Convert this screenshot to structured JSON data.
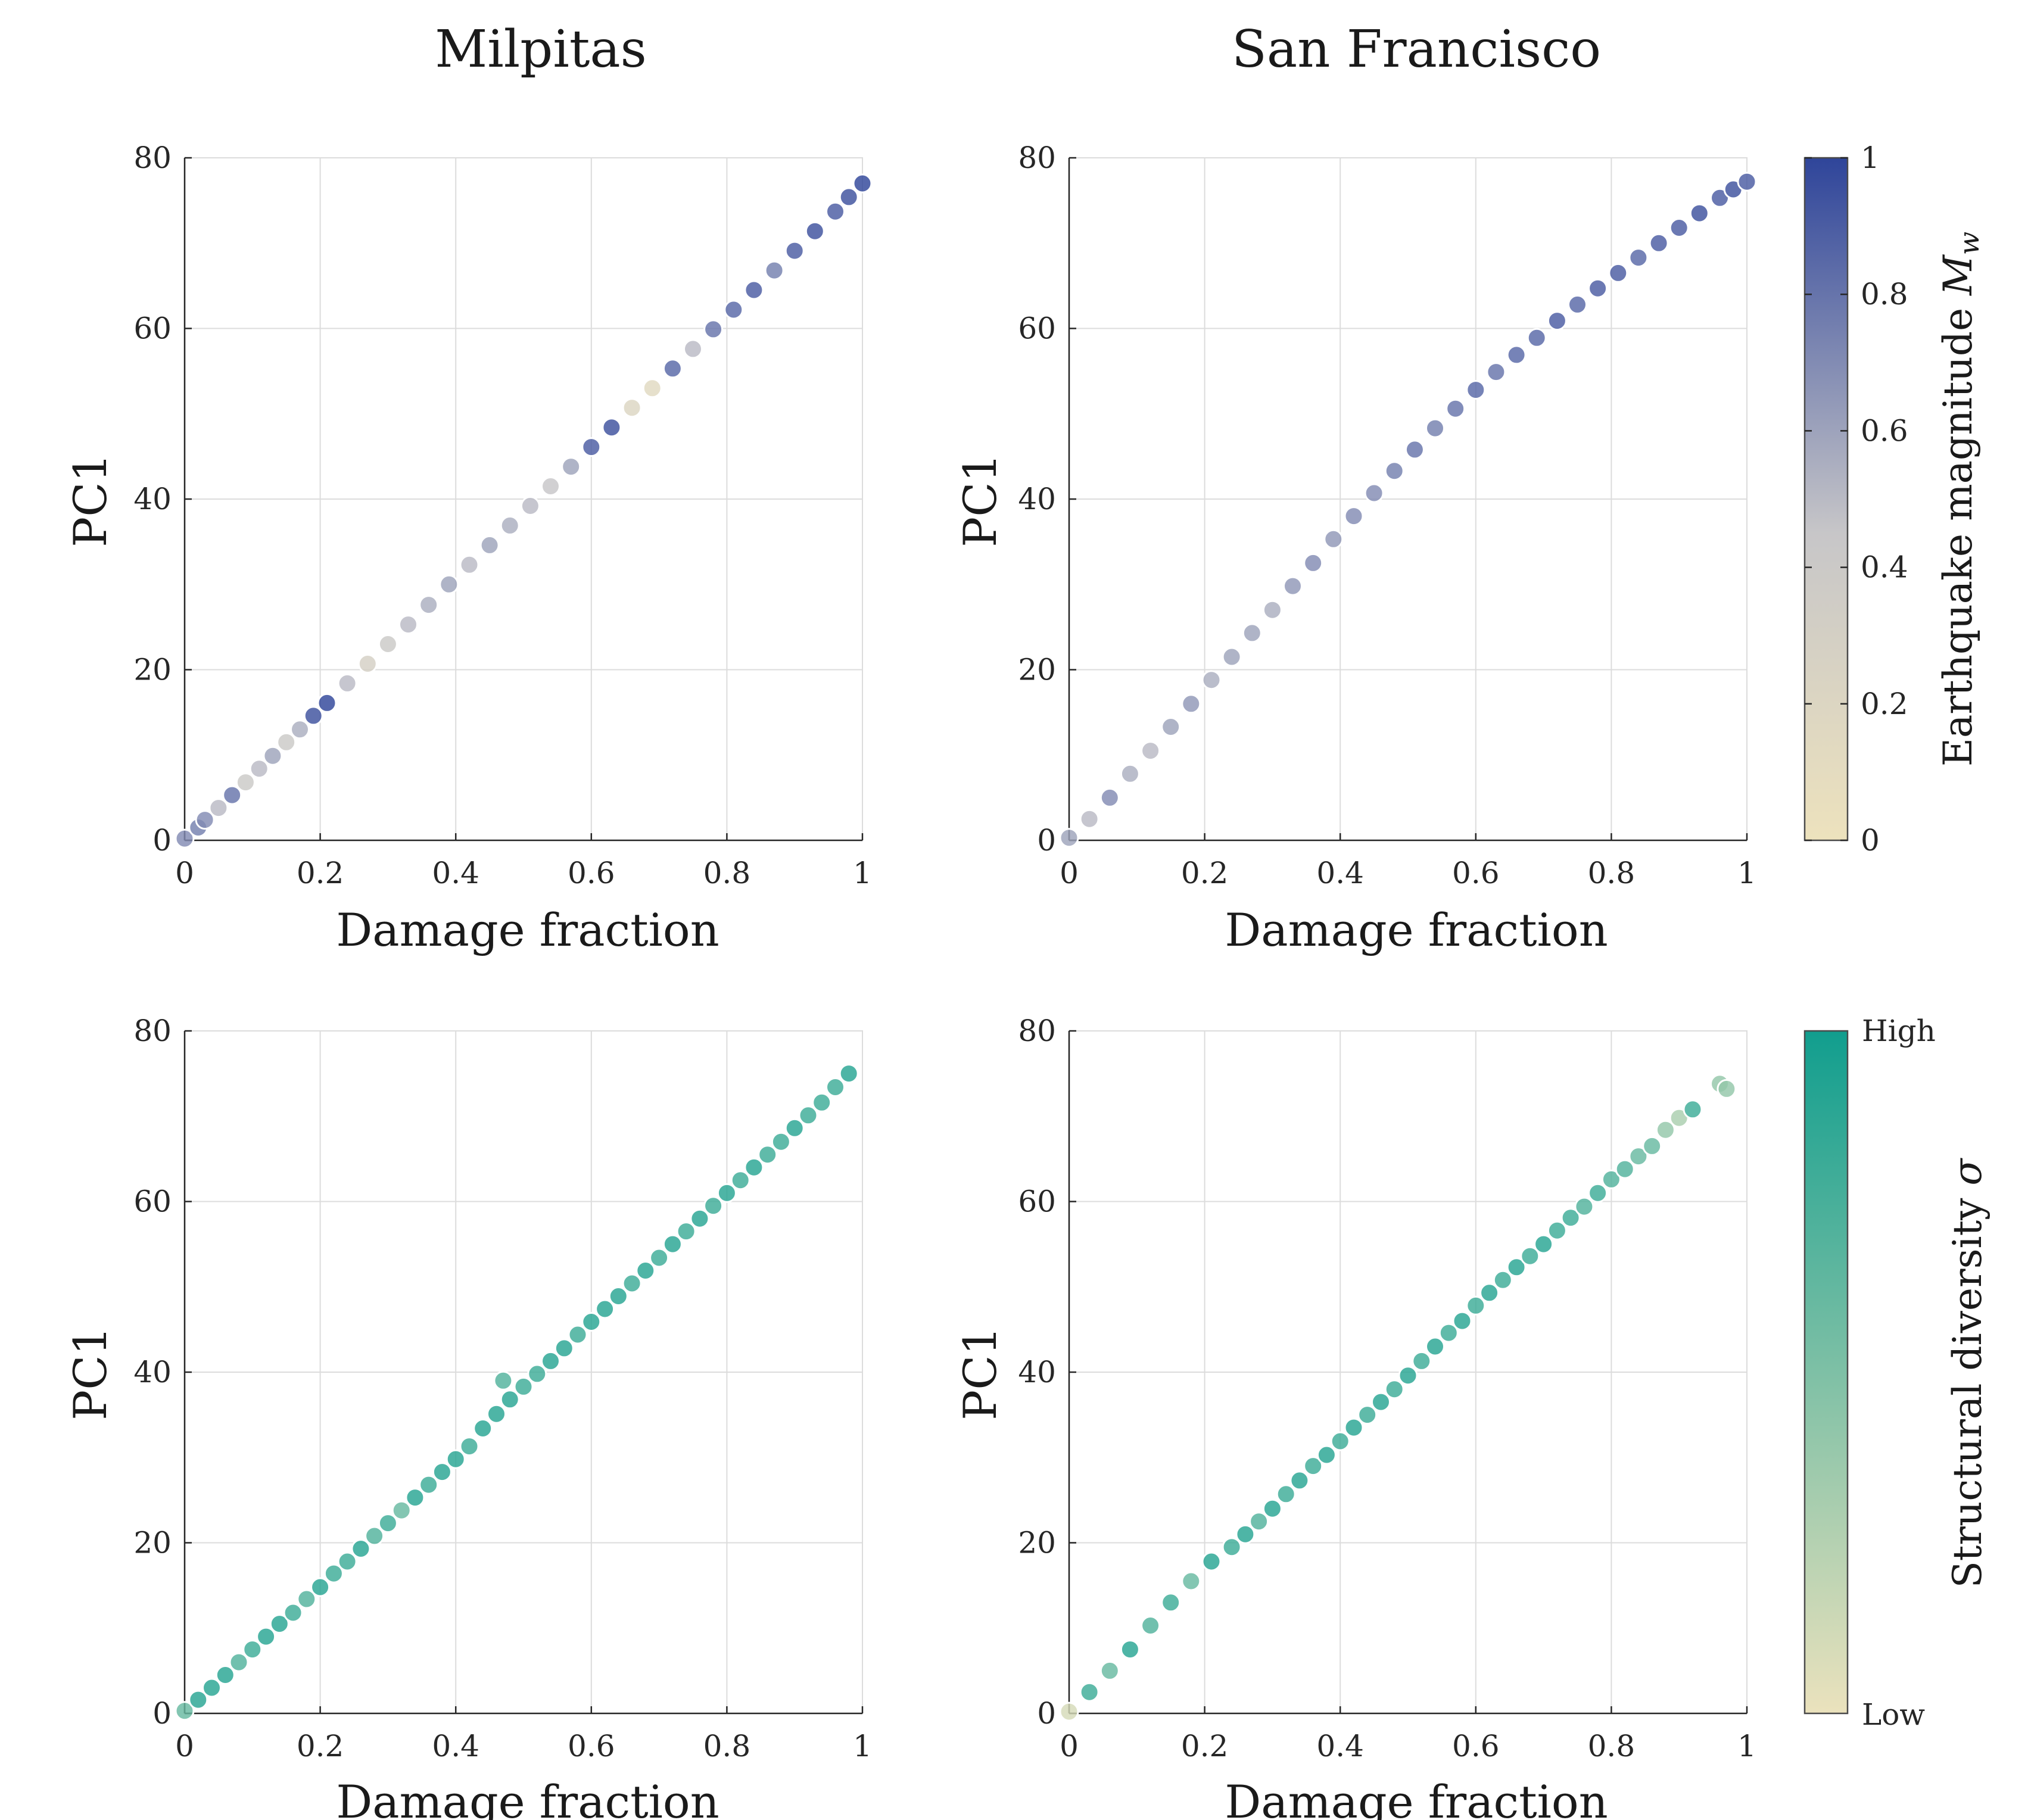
{
  "figure": {
    "column_titles": [
      "Milpitas",
      "San Francisco"
    ]
  },
  "colorbars": [
    {
      "label": "Earthquake magnitude M_w",
      "label_prefix": "Earthquake magnitude ",
      "label_symbol": "M",
      "label_subscript": "w",
      "ticks": [
        "0",
        "0.2",
        "0.4",
        "0.6",
        "0.8",
        "1"
      ],
      "color_low": "#ede2bd",
      "color_mid": "#c7c6c8",
      "color_high": "#2f459a"
    },
    {
      "label": "Structural diversity σ",
      "label_prefix": "Structural diversity ",
      "label_symbol": "σ",
      "ticks": [
        "Low",
        "High"
      ],
      "color_low": "#ebe2bd",
      "color_high": "#119e8e"
    }
  ],
  "chart_data": [
    {
      "type": "scatter",
      "panel": "top-left",
      "title": "Milpitas",
      "xlabel": "Damage fraction",
      "ylabel": "PC1",
      "xlim": [
        0,
        1
      ],
      "ylim": [
        0,
        80
      ],
      "xticks": [
        "0",
        "0.2",
        "0.4",
        "0.6",
        "0.8",
        "1"
      ],
      "yticks": [
        "0",
        "20",
        "40",
        "60",
        "80"
      ],
      "grid": true,
      "color_by": "Earthquake magnitude M_w",
      "x": [
        0.0,
        0.02,
        0.03,
        0.05,
        0.07,
        0.09,
        0.11,
        0.13,
        0.15,
        0.17,
        0.19,
        0.21,
        0.24,
        0.27,
        0.3,
        0.33,
        0.36,
        0.39,
        0.42,
        0.45,
        0.48,
        0.51,
        0.54,
        0.57,
        0.6,
        0.63,
        0.66,
        0.69,
        0.72,
        0.75,
        0.78,
        0.81,
        0.84,
        0.87,
        0.9,
        0.93,
        0.96,
        0.98,
        1.0
      ],
      "y": [
        0.2,
        1.5,
        2.4,
        3.8,
        5.3,
        6.8,
        8.4,
        9.9,
        11.5,
        13.0,
        14.6,
        16.1,
        18.4,
        20.7,
        23.0,
        25.3,
        27.6,
        30.0,
        32.3,
        34.6,
        36.9,
        39.2,
        41.5,
        43.8,
        46.1,
        48.4,
        50.7,
        53.0,
        55.3,
        57.6,
        59.9,
        62.2,
        64.5,
        66.8,
        69.1,
        71.4,
        73.7,
        75.4,
        77.0
      ],
      "magnitude": [
        0.7,
        0.75,
        0.7,
        0.5,
        0.8,
        0.4,
        0.5,
        0.6,
        0.4,
        0.55,
        0.95,
        1.0,
        0.5,
        0.3,
        0.4,
        0.5,
        0.55,
        0.6,
        0.5,
        0.6,
        0.55,
        0.5,
        0.45,
        0.6,
        0.9,
        0.95,
        0.2,
        0.15,
        0.85,
        0.5,
        0.8,
        0.85,
        0.9,
        0.75,
        0.9,
        0.95,
        0.9,
        0.95,
        1.0
      ]
    },
    {
      "type": "scatter",
      "panel": "top-right",
      "title": "San Francisco",
      "xlabel": "Damage fraction",
      "ylabel": "PC1",
      "xlim": [
        0,
        1
      ],
      "ylim": [
        0,
        80
      ],
      "xticks": [
        "0",
        "0.2",
        "0.4",
        "0.6",
        "0.8",
        "1"
      ],
      "yticks": [
        "0",
        "20",
        "40",
        "60",
        "80"
      ],
      "grid": true,
      "color_by": "Earthquake magnitude M_w",
      "x": [
        0.0,
        0.03,
        0.06,
        0.09,
        0.12,
        0.15,
        0.18,
        0.21,
        0.24,
        0.27,
        0.3,
        0.33,
        0.36,
        0.39,
        0.42,
        0.45,
        0.48,
        0.51,
        0.54,
        0.57,
        0.6,
        0.63,
        0.66,
        0.69,
        0.72,
        0.75,
        0.78,
        0.81,
        0.84,
        0.87,
        0.9,
        0.93,
        0.96,
        0.98,
        1.0
      ],
      "y": [
        0.3,
        2.5,
        5.0,
        7.8,
        10.5,
        13.3,
        16.0,
        18.8,
        21.5,
        24.3,
        27.0,
        29.8,
        32.5,
        35.3,
        38.0,
        40.7,
        43.3,
        45.8,
        48.3,
        50.6,
        52.8,
        54.9,
        56.9,
        58.9,
        60.9,
        62.8,
        64.7,
        66.5,
        68.3,
        70.0,
        71.8,
        73.5,
        75.3,
        76.3,
        77.2
      ],
      "magnitude": [
        0.6,
        0.5,
        0.7,
        0.55,
        0.5,
        0.6,
        0.65,
        0.55,
        0.6,
        0.6,
        0.55,
        0.65,
        0.7,
        0.65,
        0.7,
        0.7,
        0.75,
        0.8,
        0.75,
        0.8,
        0.85,
        0.8,
        0.85,
        0.85,
        0.9,
        0.85,
        0.9,
        0.9,
        0.85,
        0.9,
        0.9,
        0.95,
        0.9,
        0.95,
        0.9
      ]
    },
    {
      "type": "scatter",
      "panel": "bottom-left",
      "title": "",
      "xlabel": "Damage fraction",
      "ylabel": "PC1",
      "xlim": [
        0,
        1
      ],
      "ylim": [
        0,
        80
      ],
      "xticks": [
        "0",
        "0.2",
        "0.4",
        "0.6",
        "0.8",
        "1"
      ],
      "yticks": [
        "0",
        "20",
        "40",
        "60",
        "80"
      ],
      "grid": true,
      "color_by": "Structural diversity σ",
      "x": [
        0.0,
        0.02,
        0.04,
        0.06,
        0.08,
        0.1,
        0.12,
        0.14,
        0.16,
        0.18,
        0.2,
        0.22,
        0.24,
        0.26,
        0.28,
        0.3,
        0.32,
        0.34,
        0.36,
        0.38,
        0.4,
        0.42,
        0.44,
        0.46,
        0.47,
        0.48,
        0.5,
        0.52,
        0.54,
        0.56,
        0.58,
        0.6,
        0.62,
        0.64,
        0.66,
        0.68,
        0.7,
        0.72,
        0.74,
        0.76,
        0.78,
        0.8,
        0.82,
        0.84,
        0.86,
        0.88,
        0.9,
        0.92,
        0.94,
        0.96,
        0.98
      ],
      "y": [
        0.3,
        1.6,
        3.0,
        4.5,
        6.0,
        7.5,
        9.0,
        10.5,
        11.8,
        13.4,
        14.8,
        16.4,
        17.8,
        19.3,
        20.8,
        22.3,
        23.8,
        25.3,
        26.8,
        28.3,
        29.8,
        31.3,
        33.4,
        35.1,
        39.0,
        36.8,
        38.3,
        39.8,
        41.3,
        42.8,
        44.4,
        45.9,
        47.4,
        48.9,
        50.4,
        51.9,
        53.4,
        55.0,
        56.5,
        58.0,
        59.5,
        61.0,
        62.5,
        64.0,
        65.5,
        67.0,
        68.6,
        70.1,
        71.6,
        73.4,
        75.0
      ],
      "diversity": [
        0.6,
        0.9,
        0.9,
        0.9,
        0.7,
        0.8,
        0.9,
        0.9,
        0.8,
        0.7,
        0.9,
        0.8,
        0.8,
        0.9,
        0.7,
        0.8,
        0.6,
        0.9,
        0.8,
        0.9,
        0.9,
        0.8,
        0.9,
        0.9,
        0.7,
        0.9,
        0.8,
        0.8,
        0.9,
        0.9,
        0.8,
        0.9,
        0.9,
        0.9,
        0.8,
        0.9,
        0.8,
        0.9,
        0.8,
        0.9,
        0.8,
        0.9,
        0.8,
        0.9,
        0.8,
        0.8,
        0.9,
        0.8,
        0.8,
        0.8,
        0.9
      ]
    },
    {
      "type": "scatter",
      "panel": "bottom-right",
      "title": "",
      "xlabel": "Damage fraction",
      "ylabel": "PC1",
      "xlim": [
        0,
        1
      ],
      "ylim": [
        0,
        80
      ],
      "xticks": [
        "0",
        "0.2",
        "0.4",
        "0.6",
        "0.8",
        "1"
      ],
      "yticks": [
        "0",
        "20",
        "40",
        "60",
        "80"
      ],
      "grid": true,
      "color_by": "Structural diversity σ",
      "x": [
        0.0,
        0.03,
        0.06,
        0.09,
        0.12,
        0.15,
        0.18,
        0.21,
        0.24,
        0.26,
        0.28,
        0.3,
        0.32,
        0.34,
        0.36,
        0.38,
        0.4,
        0.42,
        0.44,
        0.46,
        0.48,
        0.5,
        0.52,
        0.54,
        0.56,
        0.58,
        0.6,
        0.62,
        0.64,
        0.66,
        0.68,
        0.7,
        0.72,
        0.74,
        0.76,
        0.78,
        0.8,
        0.82,
        0.84,
        0.86,
        0.88,
        0.9,
        0.92,
        0.96,
        0.97
      ],
      "y": [
        0.2,
        2.5,
        5.0,
        7.5,
        10.3,
        13.0,
        15.5,
        17.8,
        19.5,
        21.0,
        22.5,
        24.0,
        25.7,
        27.3,
        29.0,
        30.3,
        31.9,
        33.5,
        35.0,
        36.5,
        38.0,
        39.6,
        41.3,
        43.0,
        44.6,
        46.0,
        47.8,
        49.3,
        50.8,
        52.3,
        53.6,
        55.0,
        56.6,
        58.1,
        59.4,
        61.0,
        62.6,
        63.8,
        65.3,
        66.5,
        68.4,
        69.8,
        70.8,
        73.8,
        73.2
      ],
      "diversity": [
        0.1,
        0.8,
        0.6,
        0.9,
        0.7,
        0.8,
        0.6,
        0.9,
        0.8,
        0.9,
        0.7,
        0.9,
        0.8,
        0.9,
        0.8,
        0.9,
        0.8,
        0.9,
        0.8,
        0.9,
        0.8,
        0.9,
        0.8,
        0.9,
        0.8,
        0.9,
        0.8,
        0.9,
        0.8,
        0.9,
        0.8,
        0.9,
        0.8,
        0.8,
        0.7,
        0.8,
        0.7,
        0.7,
        0.6,
        0.6,
        0.4,
        0.3,
        0.8,
        0.4,
        0.4
      ]
    }
  ],
  "panels": [
    {
      "xlabel": "Damage fraction",
      "ylabel": "PC1"
    },
    {
      "xlabel": "Damage fraction",
      "ylabel": "PC1"
    },
    {
      "xlabel": "Damage fraction",
      "ylabel": "PC1"
    },
    {
      "xlabel": "Damage fraction",
      "ylabel": "PC1"
    }
  ]
}
